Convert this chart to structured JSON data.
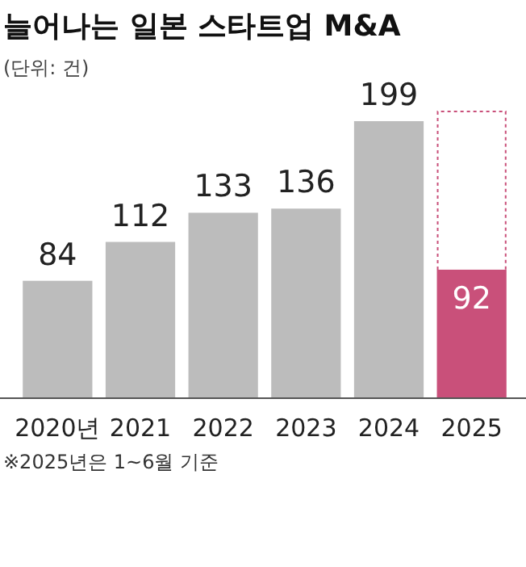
{
  "chart_data": {
    "type": "bar",
    "title": "늘어나는 일본 스타트업 M&A",
    "subtitle": "(단위: 건)",
    "categories": [
      "2020년",
      "2021",
      "2022",
      "2023",
      "2024",
      "2025"
    ],
    "values": [
      84,
      112,
      133,
      136,
      199,
      92
    ],
    "colors": [
      "#bcbcbc",
      "#bcbcbc",
      "#bcbcbc",
      "#bcbcbc",
      "#bcbcbc",
      "#c9507a"
    ],
    "data_labels": true,
    "relative": false,
    "annotations": [
      "※2025년은 1~6월 기준"
    ]
  }
}
